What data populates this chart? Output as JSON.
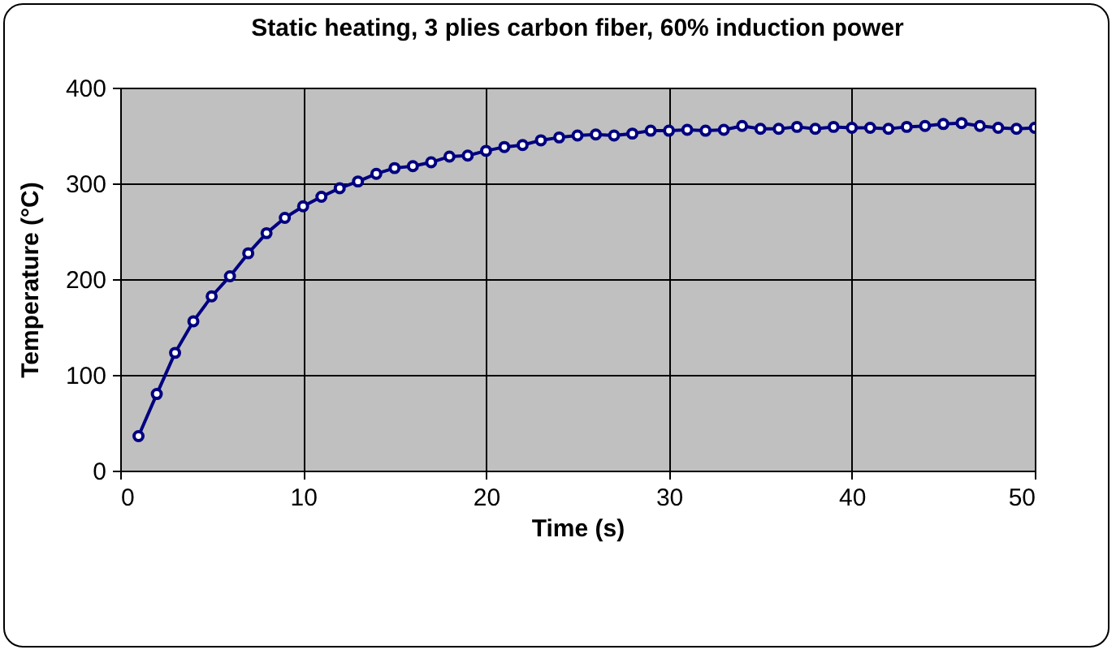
{
  "chart_data": {
    "type": "line",
    "title": "Static heating, 3 plies carbon fiber, 60% induction power",
    "xlabel": "Time (s)",
    "ylabel": "Temperature (°C)",
    "x": [
      1,
      2,
      3,
      4,
      5,
      6,
      7,
      8,
      9,
      10,
      11,
      12,
      13,
      14,
      15,
      16,
      17,
      18,
      19,
      20,
      21,
      22,
      23,
      24,
      25,
      26,
      27,
      28,
      29,
      30,
      31,
      32,
      33,
      34,
      35,
      36,
      37,
      38,
      39,
      40,
      41,
      42,
      43,
      44,
      45,
      46,
      47,
      48,
      49,
      50
    ],
    "series": [
      {
        "color": "#000080",
        "values": [
          36,
          80,
          123,
          156,
          182,
          203,
          227,
          248,
          264,
          276,
          286,
          295,
          302,
          310,
          316,
          318,
          322,
          328,
          329,
          334,
          338,
          340,
          345,
          348,
          350,
          351,
          350,
          352,
          355,
          355,
          356,
          355,
          356,
          360,
          357,
          357,
          359,
          357,
          359,
          358,
          358,
          357,
          359,
          360,
          362,
          363,
          360,
          358,
          357,
          358
        ]
      }
    ],
    "xlim": [
      0,
      50
    ],
    "xticks": [
      0,
      10,
      20,
      30,
      40,
      50
    ],
    "ylim": [
      0,
      400
    ],
    "yticks": [
      0,
      100,
      200,
      300,
      400
    ],
    "grid": true,
    "marker": "circle",
    "line_style": "solid"
  }
}
